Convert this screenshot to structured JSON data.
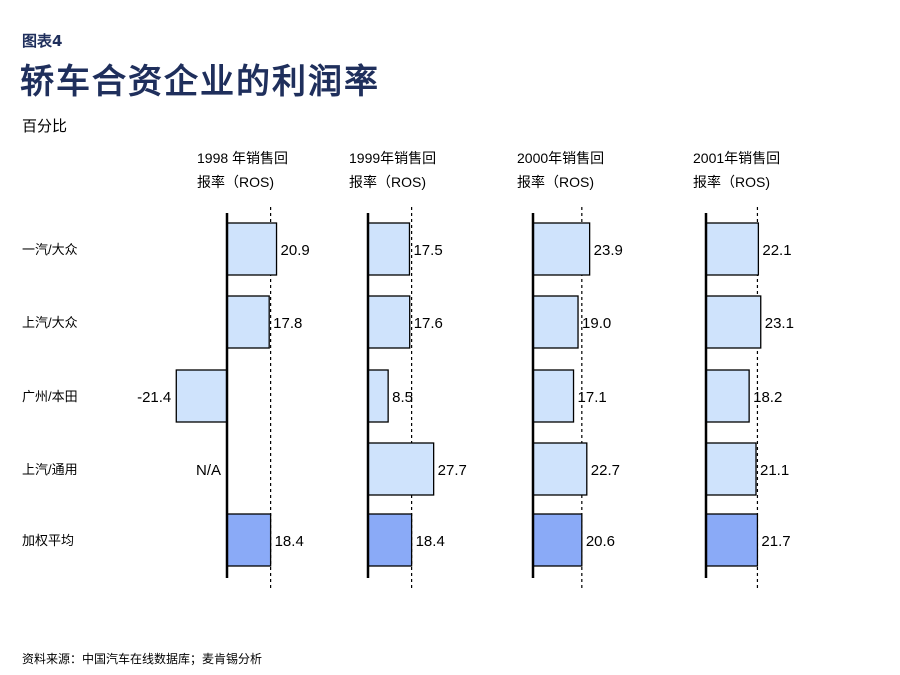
{
  "figure_label": "图表4",
  "title": "轿车合资企业的利润率",
  "unit": "百分比",
  "source": "资料来源：中国汽车在线数据库；麦肯锡分析",
  "colors": {
    "bar_fill": "#cfe3fc",
    "bar_avg_fill": "#8aaaf7",
    "bar_stroke": "#000000",
    "title": "#1f2f5c"
  },
  "chart_data": {
    "type": "bar",
    "orientation": "horizontal",
    "categories": [
      "一汽/大众",
      "上汽/大众",
      "广州/本田",
      "上汽/通用",
      "加权平均"
    ],
    "panels": [
      {
        "header": [
          "1998 年销售回",
          "报率（ROS)"
        ],
        "values": [
          20.9,
          17.8,
          -21.4,
          null,
          18.4
        ],
        "labels": [
          "20.9",
          "17.8",
          "-21.4",
          "N/A",
          "18.4"
        ],
        "reference": 18.4
      },
      {
        "header": [
          "1999年销售回",
          "报率（ROS)"
        ],
        "values": [
          17.5,
          17.6,
          8.5,
          27.7,
          18.4
        ],
        "labels": [
          "17.5",
          "17.6",
          "8.5",
          "27.7",
          "18.4"
        ],
        "reference": 18.4
      },
      {
        "header": [
          "2000年销售回",
          "报率（ROS)"
        ],
        "values": [
          23.9,
          19.0,
          17.1,
          22.7,
          20.6
        ],
        "labels": [
          "23.9",
          "19.0",
          "17.1",
          "22.7",
          "20.6"
        ],
        "reference": 20.6
      },
      {
        "header": [
          "2001年销售回",
          "报率（ROS)"
        ],
        "values": [
          22.1,
          23.1,
          18.2,
          21.1,
          21.7
        ],
        "labels": [
          "22.1",
          "23.1",
          "18.2",
          "21.1",
          "21.7"
        ],
        "reference": 21.7
      }
    ]
  }
}
